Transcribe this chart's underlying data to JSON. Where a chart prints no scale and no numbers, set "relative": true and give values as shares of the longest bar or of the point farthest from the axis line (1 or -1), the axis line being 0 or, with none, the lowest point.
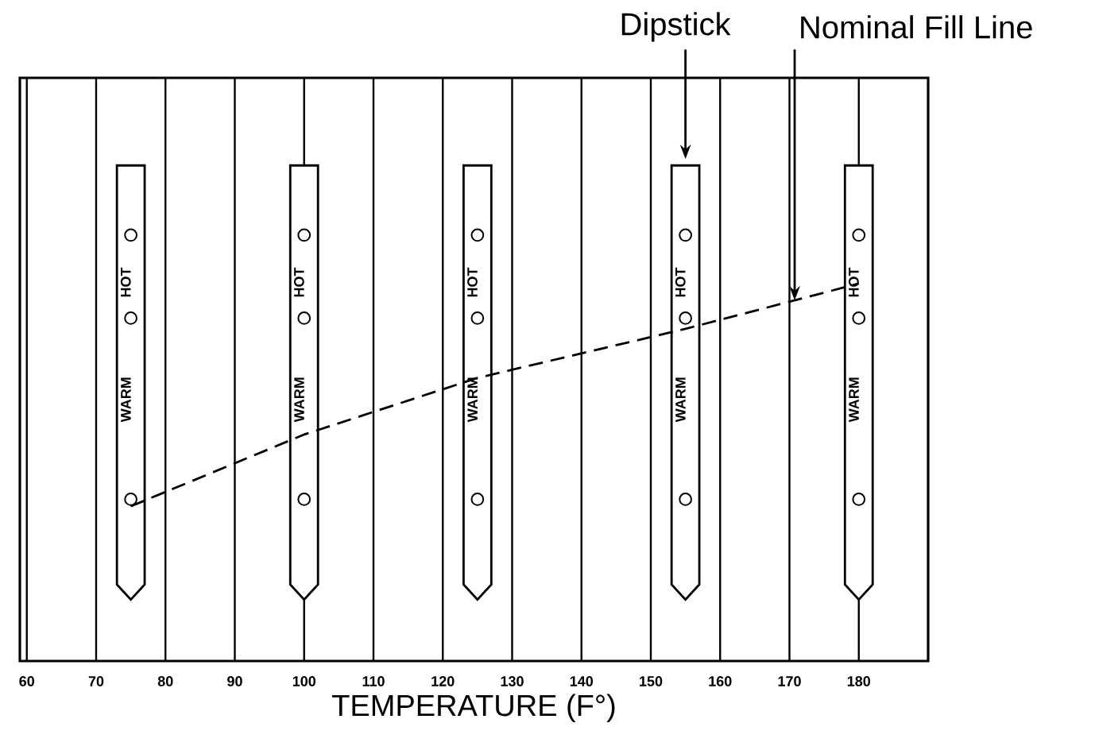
{
  "chart_data": {
    "type": "line",
    "relative": true,
    "xlabel": "TEMPERATURE (F°)",
    "x": [
      75,
      100,
      125,
      155,
      180
    ],
    "xlim": [
      59,
      190
    ],
    "xticks": [
      60,
      70,
      80,
      90,
      100,
      110,
      120,
      130,
      140,
      150,
      160,
      170,
      180
    ],
    "series": [
      {
        "color": "#000000",
        "values": [
          0.41,
          0.6,
          0.75,
          0.88,
          1.0
        ]
      }
    ],
    "line_style": "dashed",
    "marker": "none",
    "grid": "x",
    "annotations": [
      "Dipstick",
      "HOT",
      "WARM",
      "Nominal Fill Line"
    ]
  }
}
